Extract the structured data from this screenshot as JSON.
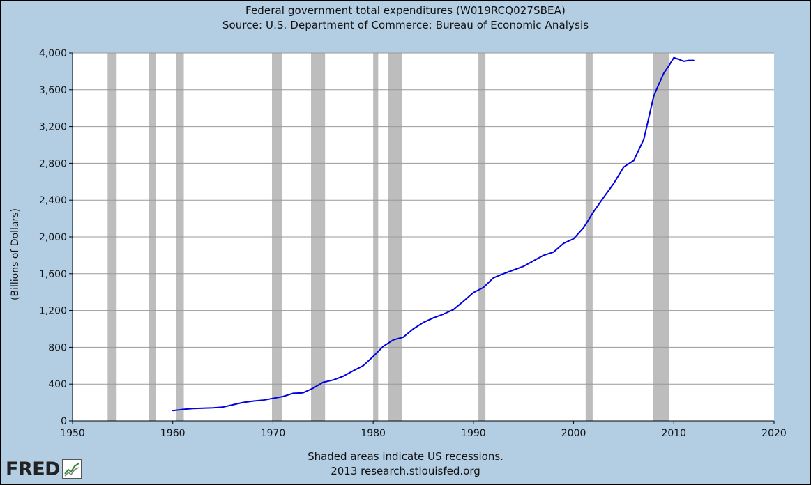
{
  "chart_data": {
    "type": "line",
    "title": "Federal government total expenditures (W019RCQ027SBEA)",
    "subtitle": "Source: U.S. Department of Commerce: Bureau of Economic Analysis",
    "xlabel": "",
    "ylabel": "(Billions of Dollars)",
    "xlim": [
      1950,
      2020
    ],
    "ylim": [
      0,
      4000
    ],
    "xticks": [
      1950,
      1960,
      1970,
      1980,
      1990,
      2000,
      2010,
      2020
    ],
    "xtick_labels": [
      "1950",
      "1960",
      "1970",
      "1980",
      "1990",
      "2000",
      "2010",
      "2020"
    ],
    "yticks": [
      0,
      400,
      800,
      1200,
      1600,
      2000,
      2400,
      2800,
      3200,
      3600,
      4000
    ],
    "ytick_labels": [
      "0",
      "400",
      "800",
      "1,200",
      "1,600",
      "2,000",
      "2,400",
      "2,800",
      "3,200",
      "3,600",
      "4,000"
    ],
    "grid": true,
    "line_color": "#0000e0",
    "recession_color": "#bdbdbd",
    "recessions": [
      [
        1953.5,
        1954.4
      ],
      [
        1957.6,
        1958.3
      ],
      [
        1960.3,
        1961.1
      ],
      [
        1969.9,
        1970.9
      ],
      [
        1973.8,
        1975.2
      ],
      [
        1980.0,
        1980.5
      ],
      [
        1981.5,
        1982.9
      ],
      [
        1990.5,
        1991.2
      ],
      [
        2001.2,
        2001.9
      ],
      [
        2007.9,
        2009.5
      ]
    ],
    "series": [
      {
        "name": "W019RCQ027SBEA",
        "x": [
          1960,
          1961,
          1962,
          1963,
          1964,
          1965,
          1966,
          1967,
          1968,
          1969,
          1970,
          1971,
          1972,
          1973,
          1974,
          1975,
          1976,
          1977,
          1978,
          1979,
          1980,
          1981,
          1982,
          1983,
          1984,
          1985,
          1986,
          1987,
          1988,
          1989,
          1990,
          1991,
          1992,
          1993,
          1994,
          1995,
          1996,
          1997,
          1998,
          1999,
          2000,
          2001,
          2002,
          2003,
          2004,
          2005,
          2006,
          2007,
          2008,
          2008.5,
          2009,
          2009.5,
          2010,
          2010.5,
          2011,
          2011.5,
          2012
        ],
        "values": [
          112,
          125,
          135,
          138,
          142,
          150,
          175,
          200,
          215,
          225,
          245,
          265,
          300,
          305,
          355,
          420,
          445,
          485,
          545,
          600,
          700,
          810,
          880,
          910,
          1000,
          1070,
          1120,
          1160,
          1210,
          1300,
          1395,
          1450,
          1555,
          1600,
          1640,
          1680,
          1740,
          1800,
          1835,
          1930,
          1980,
          2100,
          2275,
          2430,
          2580,
          2760,
          2830,
          3060,
          3530,
          3660,
          3780,
          3860,
          3950,
          3930,
          3910,
          3920,
          3920
        ]
      }
    ]
  },
  "footer": {
    "note": "Shaded areas indicate US recessions.",
    "credit": "2013 research.stlouisfed.org"
  },
  "logo": {
    "text": "FRED"
  }
}
